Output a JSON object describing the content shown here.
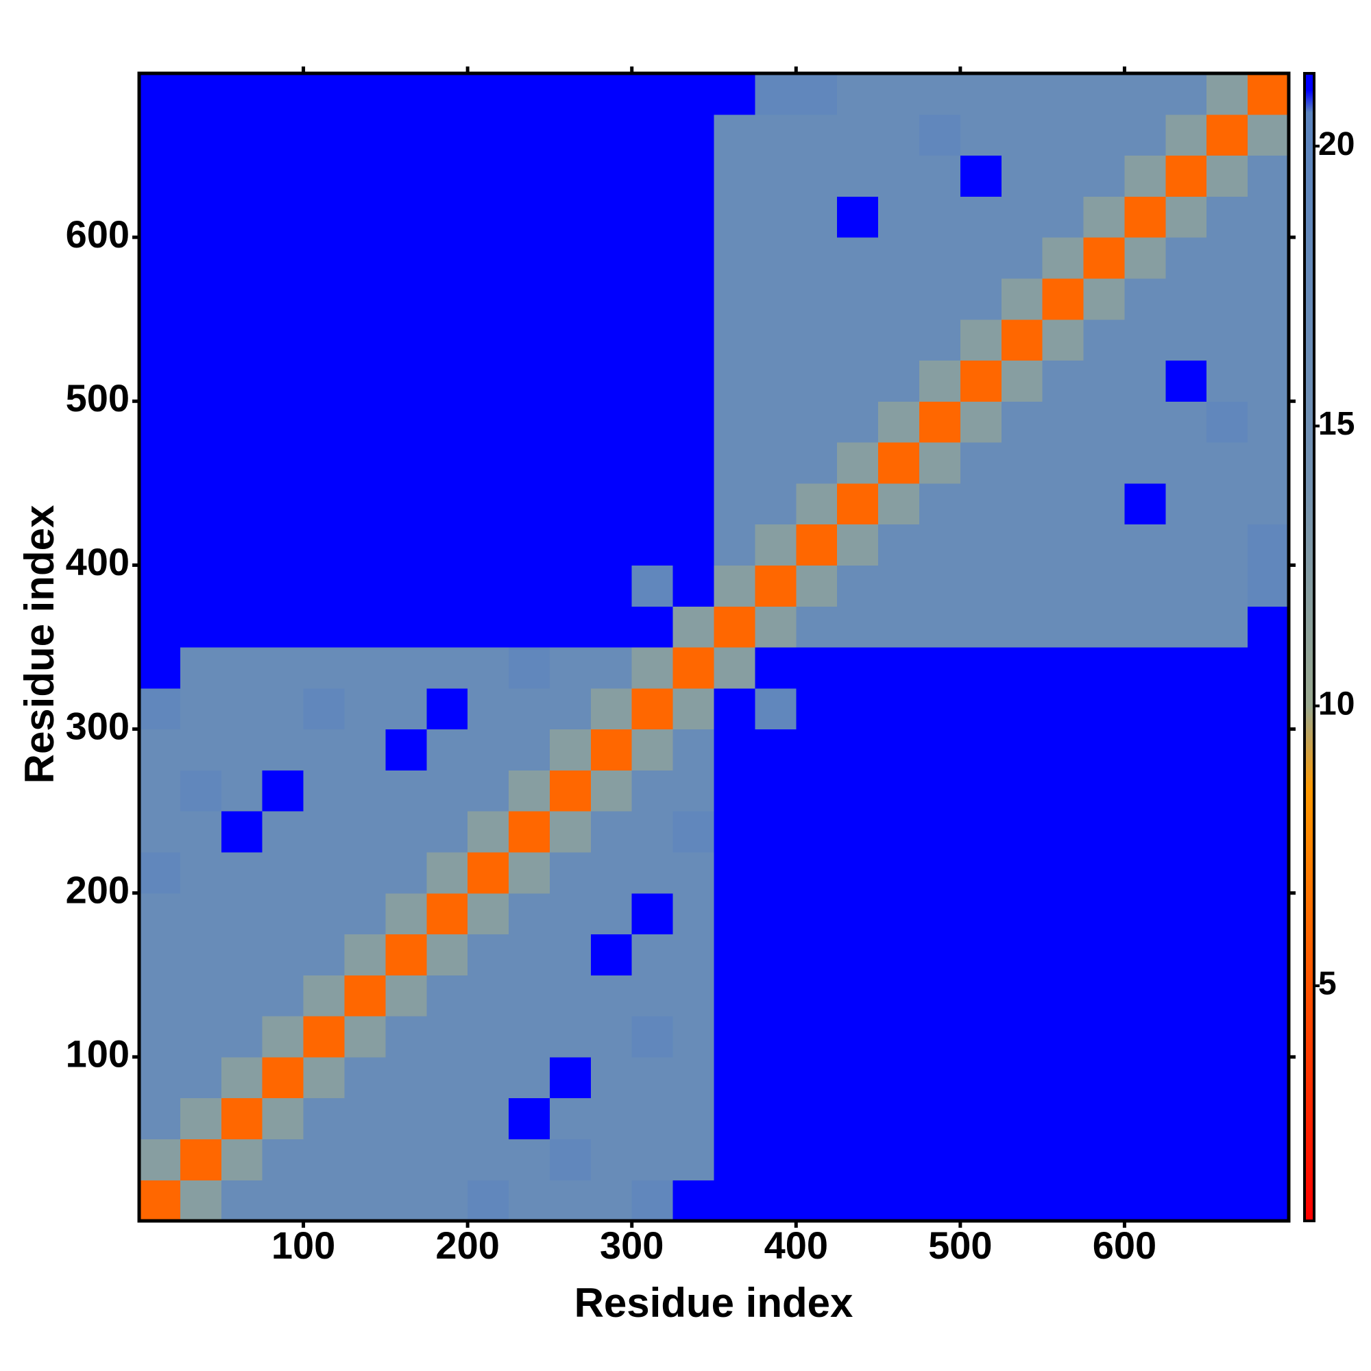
{
  "chart_data": {
    "type": "heatmap",
    "xlabel": "Residue index",
    "ylabel": "Residue index",
    "xlim": [
      0,
      700
    ],
    "ylim": [
      0,
      700
    ],
    "xticks": [
      100,
      200,
      300,
      400,
      500,
      600
    ],
    "yticks": [
      100,
      200,
      300,
      400,
      500,
      600
    ],
    "zlim": [
      0.8,
      21.3
    ],
    "colorbar_ticks": [
      5,
      10,
      15,
      20
    ],
    "colorscale": [
      [
        0.8,
        "#ff0000"
      ],
      [
        8.5,
        "#ff9900"
      ],
      [
        10,
        "#9aa98f"
      ],
      [
        14,
        "#7392b2"
      ],
      [
        20.6,
        "#5b84bf"
      ],
      [
        21,
        "#0000ff"
      ]
    ],
    "z": [
      [
        6,
        12,
        17,
        17,
        17,
        17,
        17,
        17,
        19,
        17,
        17,
        17,
        19,
        21,
        21,
        21,
        21,
        21,
        21,
        21,
        21,
        21,
        21,
        21,
        21,
        21,
        21,
        21
      ],
      [
        12,
        6,
        12,
        17,
        17,
        17,
        17,
        17,
        17,
        17,
        19,
        17,
        17,
        17,
        21,
        21,
        21,
        21,
        21,
        21,
        21,
        21,
        21,
        21,
        21,
        21,
        21,
        21
      ],
      [
        17,
        12,
        6,
        12,
        17,
        17,
        17,
        17,
        17,
        21,
        17,
        17,
        17,
        17,
        21,
        21,
        21,
        21,
        21,
        21,
        21,
        21,
        21,
        21,
        21,
        21,
        21,
        21
      ],
      [
        17,
        17,
        12,
        6,
        12,
        17,
        17,
        17,
        17,
        17,
        21,
        17,
        17,
        17,
        21,
        21,
        21,
        21,
        21,
        21,
        21,
        21,
        21,
        21,
        21,
        21,
        21,
        21
      ],
      [
        17,
        17,
        17,
        12,
        6,
        12,
        17,
        17,
        17,
        17,
        17,
        17,
        19,
        17,
        21,
        21,
        21,
        21,
        21,
        21,
        21,
        21,
        21,
        21,
        21,
        21,
        21,
        21
      ],
      [
        17,
        17,
        17,
        17,
        12,
        6,
        12,
        17,
        17,
        17,
        17,
        17,
        17,
        17,
        21,
        21,
        21,
        21,
        21,
        21,
        21,
        21,
        21,
        21,
        21,
        21,
        21,
        21
      ],
      [
        17,
        17,
        17,
        17,
        17,
        12,
        6,
        12,
        17,
        17,
        17,
        21,
        17,
        17,
        21,
        21,
        21,
        21,
        21,
        21,
        21,
        21,
        21,
        21,
        21,
        21,
        21,
        21
      ],
      [
        17,
        17,
        17,
        17,
        17,
        17,
        12,
        6,
        12,
        17,
        17,
        17,
        21,
        17,
        21,
        21,
        21,
        21,
        21,
        21,
        21,
        21,
        21,
        21,
        21,
        21,
        21,
        21
      ],
      [
        19,
        17,
        17,
        17,
        17,
        17,
        17,
        12,
        6,
        12,
        17,
        17,
        17,
        17,
        21,
        21,
        21,
        21,
        21,
        21,
        21,
        21,
        21,
        21,
        21,
        21,
        21,
        21
      ],
      [
        17,
        17,
        21,
        17,
        17,
        17,
        17,
        17,
        12,
        6,
        12,
        17,
        17,
        19,
        21,
        21,
        21,
        21,
        21,
        21,
        21,
        21,
        21,
        21,
        21,
        21,
        21,
        21
      ],
      [
        17,
        19,
        17,
        21,
        17,
        17,
        17,
        17,
        17,
        12,
        6,
        12,
        17,
        17,
        21,
        21,
        21,
        21,
        21,
        21,
        21,
        21,
        21,
        21,
        21,
        21,
        21,
        21
      ],
      [
        17,
        17,
        17,
        17,
        17,
        17,
        21,
        17,
        17,
        17,
        12,
        6,
        12,
        17,
        21,
        21,
        21,
        21,
        21,
        21,
        21,
        21,
        21,
        21,
        21,
        21,
        21,
        21
      ],
      [
        19,
        17,
        17,
        17,
        19,
        17,
        17,
        21,
        17,
        17,
        17,
        12,
        6,
        12,
        21,
        19,
        21,
        21,
        21,
        21,
        21,
        21,
        21,
        21,
        21,
        21,
        21,
        21
      ],
      [
        21,
        17,
        17,
        17,
        17,
        17,
        17,
        17,
        17,
        19,
        17,
        17,
        12,
        6,
        12,
        21,
        21,
        21,
        21,
        21,
        21,
        21,
        21,
        21,
        21,
        21,
        21,
        21
      ],
      [
        21,
        21,
        21,
        21,
        21,
        21,
        21,
        21,
        21,
        21,
        21,
        21,
        21,
        12,
        6,
        12,
        17,
        17,
        17,
        17,
        17,
        17,
        17,
        17,
        17,
        17,
        17,
        21
      ],
      [
        21,
        21,
        21,
        21,
        21,
        21,
        21,
        21,
        21,
        21,
        21,
        21,
        19,
        21,
        12,
        6,
        12,
        17,
        17,
        17,
        17,
        17,
        17,
        17,
        17,
        17,
        17,
        19
      ],
      [
        21,
        21,
        21,
        21,
        21,
        21,
        21,
        21,
        21,
        21,
        21,
        21,
        21,
        21,
        17,
        12,
        6,
        12,
        17,
        17,
        17,
        17,
        17,
        17,
        17,
        17,
        17,
        19
      ],
      [
        21,
        21,
        21,
        21,
        21,
        21,
        21,
        21,
        21,
        21,
        21,
        21,
        21,
        21,
        17,
        17,
        12,
        6,
        12,
        17,
        17,
        17,
        17,
        17,
        21,
        17,
        17,
        17
      ],
      [
        21,
        21,
        21,
        21,
        21,
        21,
        21,
        21,
        21,
        21,
        21,
        21,
        21,
        21,
        17,
        17,
        17,
        12,
        6,
        12,
        17,
        17,
        17,
        17,
        17,
        17,
        17,
        17
      ],
      [
        21,
        21,
        21,
        21,
        21,
        21,
        21,
        21,
        21,
        21,
        21,
        21,
        21,
        21,
        17,
        17,
        17,
        17,
        12,
        6,
        12,
        17,
        17,
        17,
        17,
        17,
        19,
        17
      ],
      [
        21,
        21,
        21,
        21,
        21,
        21,
        21,
        21,
        21,
        21,
        21,
        21,
        21,
        21,
        17,
        17,
        17,
        17,
        17,
        12,
        6,
        12,
        17,
        17,
        17,
        21,
        17,
        17
      ],
      [
        21,
        21,
        21,
        21,
        21,
        21,
        21,
        21,
        21,
        21,
        21,
        21,
        21,
        21,
        17,
        17,
        17,
        17,
        17,
        17,
        12,
        6,
        12,
        17,
        17,
        17,
        17,
        17
      ],
      [
        21,
        21,
        21,
        21,
        21,
        21,
        21,
        21,
        21,
        21,
        21,
        21,
        21,
        21,
        17,
        17,
        17,
        17,
        17,
        17,
        17,
        12,
        6,
        12,
        17,
        17,
        17,
        17
      ],
      [
        21,
        21,
        21,
        21,
        21,
        21,
        21,
        21,
        21,
        21,
        21,
        21,
        21,
        21,
        17,
        17,
        17,
        17,
        17,
        17,
        17,
        17,
        12,
        6,
        12,
        17,
        17,
        17
      ],
      [
        21,
        21,
        21,
        21,
        21,
        21,
        21,
        21,
        21,
        21,
        21,
        21,
        21,
        21,
        17,
        17,
        17,
        21,
        17,
        17,
        17,
        17,
        17,
        12,
        6,
        12,
        17,
        17
      ],
      [
        21,
        21,
        21,
        21,
        21,
        21,
        21,
        21,
        21,
        21,
        21,
        21,
        21,
        21,
        17,
        17,
        17,
        17,
        17,
        17,
        21,
        17,
        17,
        17,
        12,
        6,
        12,
        17
      ],
      [
        21,
        21,
        21,
        21,
        21,
        21,
        21,
        21,
        21,
        21,
        21,
        21,
        21,
        21,
        17,
        17,
        17,
        17,
        17,
        19,
        17,
        17,
        17,
        17,
        17,
        12,
        6,
        12
      ],
      [
        21,
        21,
        21,
        21,
        21,
        21,
        21,
        21,
        21,
        21,
        21,
        21,
        21,
        21,
        21,
        19,
        19,
        17,
        17,
        17,
        17,
        17,
        17,
        17,
        17,
        17,
        12,
        6
      ]
    ]
  }
}
